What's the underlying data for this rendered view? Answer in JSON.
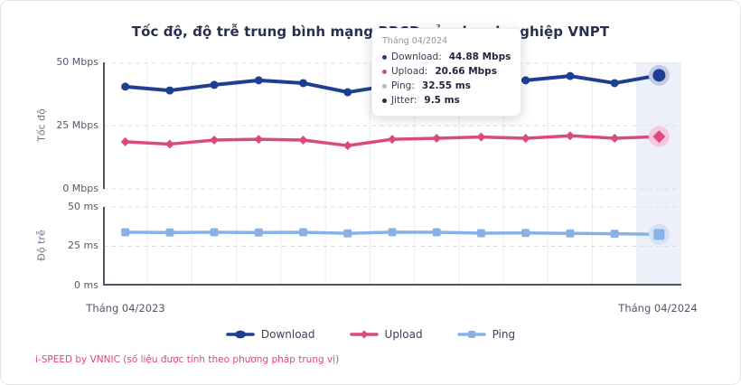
{
  "card": {
    "title": "Tốc độ, độ trễ trung bình mạng BRCĐ của doanh nghiệp VNPT",
    "footer": "i-SPEED by VNNIC (số liệu được tính theo phương pháp trung vị)"
  },
  "axes": {
    "speed_axis_label": "Tốc độ",
    "latency_axis_label": "Độ trễ",
    "speed_ticks": [
      "50 Mbps",
      "25 Mbps",
      "0 Mbps"
    ],
    "latency_ticks": [
      "50 ms",
      "25 ms",
      "0 ms"
    ],
    "x_ticks": [
      "Tháng 04/2023",
      "Tháng 04/2024"
    ]
  },
  "legend": {
    "items": [
      {
        "label": "Download",
        "color": "#1e3f91",
        "halo": "#c2cbe2",
        "marker": "circle"
      },
      {
        "label": "Upload",
        "color": "#da4a80",
        "halo": "#f5c9db",
        "marker": "diamond"
      },
      {
        "label": "Ping",
        "color": "#88b1e6",
        "halo": "#d3e2f6",
        "marker": "square"
      }
    ]
  },
  "tooltip": {
    "title": "Tháng 04/2024",
    "rows": [
      {
        "label": "Download:",
        "value": "44.88 Mbps",
        "bullet": "#1e3f91"
      },
      {
        "label": "Upload:",
        "value": "20.66 Mbps",
        "bullet": "#da4a80"
      },
      {
        "label": "Ping:",
        "value": "32.55 ms",
        "bullet": "#a9bcd9"
      },
      {
        "label": "Jitter:",
        "value": "9.5 ms",
        "bullet": "#252b42"
      }
    ]
  },
  "chart_data": [
    {
      "type": "line",
      "subplot": "speed",
      "title": "Tốc độ, độ trễ trung bình mạng BRCĐ của doanh nghiệp VNPT",
      "ylabel": "Tốc độ",
      "unit": "Mbps",
      "ylim": [
        0,
        50
      ],
      "yticks": [
        0,
        25,
        50
      ],
      "x_visible_labels": [
        "Tháng 04/2023",
        "Tháng 04/2024"
      ],
      "n_points": 13,
      "grid": true,
      "legend_position": "bottom",
      "highlight_last_point": true,
      "series": [
        {
          "name": "Download",
          "color": "#1e3f91",
          "halo": "#c2cbe2",
          "marker": "circle",
          "values": [
            40.4,
            38.9,
            41.1,
            42.9,
            41.8,
            38.2,
            41.0,
            42.5,
            43.6,
            42.9,
            44.6,
            41.8,
            44.88
          ]
        },
        {
          "name": "Upload",
          "color": "#da4a80",
          "halo": "#f5c9db",
          "marker": "diamond",
          "values": [
            18.6,
            17.7,
            19.3,
            19.6,
            19.3,
            17.1,
            19.6,
            20.0,
            20.5,
            20.0,
            21.0,
            20.0,
            20.66
          ]
        }
      ]
    },
    {
      "type": "line",
      "subplot": "latency",
      "ylabel": "Độ trễ",
      "unit": "ms",
      "ylim": [
        0,
        50
      ],
      "yticks": [
        0,
        25,
        50
      ],
      "x_visible_labels": [
        "Tháng 04/2023",
        "Tháng 04/2024"
      ],
      "n_points": 13,
      "grid": true,
      "highlight_last_point": true,
      "series": [
        {
          "name": "Ping",
          "color": "#88b1e6",
          "halo": "#d3e2f6",
          "marker": "square",
          "values": [
            33.9,
            33.8,
            33.9,
            33.8,
            33.9,
            33.2,
            34.0,
            33.9,
            33.3,
            33.5,
            33.2,
            33.0,
            32.55
          ]
        }
      ]
    }
  ],
  "style": {
    "band": "#eef0f9",
    "grid_line": "#e9ebef",
    "dashed_line": "#dbdfe5",
    "axis_line": "#4d5560",
    "accent_pink": "#e0457b",
    "title_color": "#29304d"
  }
}
